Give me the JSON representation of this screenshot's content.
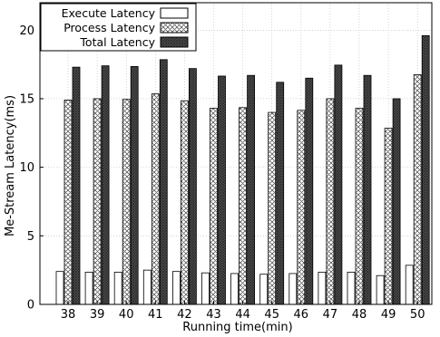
{
  "chart_data": {
    "type": "bar",
    "xlabel": "Running time(min)",
    "ylabel": "Me-Stream Latency(ms)",
    "ylim": [
      0,
      22
    ],
    "yticks": [
      0,
      5,
      10,
      15,
      20
    ],
    "grid": true,
    "legend_position": "top-left",
    "categories": [
      "38",
      "39",
      "40",
      "41",
      "42",
      "43",
      "44",
      "45",
      "46",
      "47",
      "48",
      "49",
      "50"
    ],
    "series": [
      {
        "name": "Execute Latency",
        "pattern": "white",
        "values": [
          2.4,
          2.35,
          2.35,
          2.5,
          2.4,
          2.3,
          2.25,
          2.2,
          2.25,
          2.35,
          2.35,
          2.1,
          2.85
        ]
      },
      {
        "name": "Process Latency",
        "pattern": "crosshatch",
        "values": [
          14.9,
          15.0,
          14.95,
          15.35,
          14.85,
          14.3,
          14.35,
          14.0,
          14.15,
          15.0,
          14.3,
          12.85,
          16.75
        ]
      },
      {
        "name": "Total Latency",
        "pattern": "dark-dense",
        "values": [
          17.3,
          17.4,
          17.35,
          17.85,
          17.2,
          16.65,
          16.7,
          16.2,
          16.5,
          17.45,
          16.7,
          15.0,
          19.6
        ]
      }
    ]
  },
  "colors": {
    "axis": "#000000",
    "grid": "#bbbbbb",
    "execute_fill": "#ffffff",
    "process_line": "#555555",
    "total_fill": "#555555"
  }
}
